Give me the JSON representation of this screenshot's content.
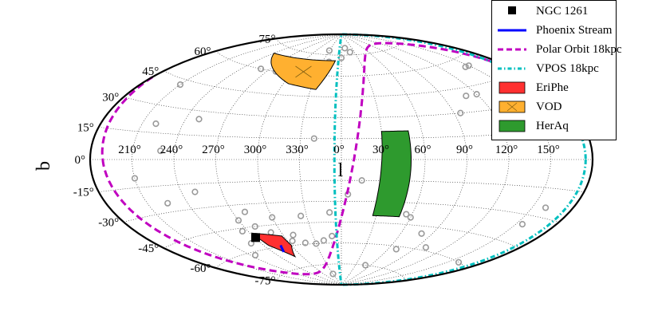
{
  "chart_data": {
    "type": "scatter",
    "projection": "aitoff",
    "xlabel": "l",
    "ylabel": "b",
    "x_ticks": [
      "150°",
      "120°",
      "90°",
      "60°",
      "30°",
      "0°",
      "330°",
      "300°",
      "270°",
      "240°",
      "210°"
    ],
    "x_tick_values": [
      150,
      120,
      90,
      60,
      30,
      0,
      -30,
      -60,
      -90,
      -120,
      -150
    ],
    "y_ticks": [
      "75°",
      "60°",
      "45°",
      "30°",
      "15°",
      "0°",
      "-15°",
      "-30°",
      "-45°",
      "-60°",
      "-75°"
    ],
    "y_tick_values": [
      75,
      60,
      45,
      30,
      15,
      0,
      -15,
      -30,
      -45,
      -60,
      -75
    ],
    "grid": true,
    "legend_position": "top-right",
    "colors": {
      "ngc1261": "#000000",
      "phoenix_stream": "#0000ff",
      "polar_orbit": "#c000c0",
      "vpos": "#00bfbf",
      "eriphe": "#ff3030",
      "vod": "#ffb030",
      "heraq": "#2e9a2e",
      "background_points": "#9a9a9a"
    },
    "series": [
      {
        "name": "NGC 1261",
        "marker": "square",
        "points": [
          [
            -89.0,
            -52.0
          ]
        ]
      },
      {
        "name": "Phoenix Stream",
        "line": "solid",
        "points": [
          [
            -72.0,
            -59.0
          ],
          [
            -74.0,
            -61.0
          ],
          [
            -77.0,
            -63.5
          ]
        ]
      },
      {
        "name": "Polar Orbit 18kpc",
        "line": "dashed",
        "pole": [
          -81.0,
          10.0
        ]
      },
      {
        "name": "VPOS 18kpc",
        "line": "dashdot",
        "pole": [
          -95.0,
          0.0
        ]
      },
      {
        "name": "EriPhe",
        "fill": "polygon",
        "vertices": [
          [
            -62.0,
            -53.0
          ],
          [
            -88.0,
            -49.0
          ],
          [
            -85.0,
            -58.0
          ],
          [
            -70.0,
            -67.5
          ],
          [
            -60.0,
            -60.0
          ]
        ]
      },
      {
        "name": "VOD",
        "fill": "polygon",
        "hatch": true,
        "vertices": [
          [
            -10.0,
            71.0
          ],
          [
            -120.0,
            70.0
          ],
          [
            -55.0,
            53.0
          ],
          [
            -25.0,
            50.0
          ]
        ]
      },
      {
        "name": "HerAq",
        "fill": "polygon",
        "vertices": [
          [
            50.0,
            20.0
          ],
          [
            30.0,
            20.0
          ],
          [
            27.0,
            -40.0
          ],
          [
            50.0,
            -40.0
          ]
        ]
      },
      {
        "name": "",
        "marker": "open-circle",
        "points": [
          [
            10.0,
            80.0
          ],
          [
            20.0,
            77.0
          ],
          [
            -30.0,
            78.0
          ],
          [
            -20.0,
            70.0
          ],
          [
            0.0,
            73.0
          ],
          [
            -80.0,
            63.0
          ],
          [
            -80.0,
            60.0
          ],
          [
            -100.0,
            60.0
          ],
          [
            -150.0,
            42.0
          ],
          [
            -140.0,
            20.0
          ],
          [
            145.0,
            55.0
          ],
          [
            150.0,
            55.0
          ],
          [
            160.0,
            35.0
          ],
          [
            120.0,
            40.0
          ],
          [
            110.0,
            40.0
          ],
          [
            95.0,
            30.0
          ],
          [
            -20.0,
            15.0
          ],
          [
            -110.0,
            25.0
          ],
          [
            -130.0,
            5.0
          ],
          [
            -150.0,
            -10.0
          ],
          [
            -110.0,
            -20.0
          ],
          [
            -135.0,
            -25.0
          ],
          [
            15.0,
            -15.0
          ],
          [
            5.0,
            -25.0
          ],
          [
            -10.0,
            -38.0
          ],
          [
            -35.0,
            -40.0
          ],
          [
            -60.0,
            -40.0
          ],
          [
            -80.0,
            -35.0
          ],
          [
            -90.0,
            -40.0
          ],
          [
            -95.0,
            -47.0
          ],
          [
            -100.0,
            -55.0
          ],
          [
            -115.0,
            -62.0
          ],
          [
            -10.0,
            -55.0
          ],
          [
            -20.0,
            -58.0
          ],
          [
            -30.0,
            -60.0
          ],
          [
            -42.0,
            -59.0
          ],
          [
            -50.0,
            -53.0
          ],
          [
            -55.0,
            -57.0
          ],
          [
            -70.0,
            -50.0
          ],
          [
            -80.0,
            -45.0
          ],
          [
            -30.0,
            -82.0
          ],
          [
            60.0,
            -40.0
          ],
          [
            55.0,
            -38.0
          ],
          [
            80.0,
            -50.0
          ],
          [
            100.0,
            -58.0
          ],
          [
            70.0,
            -62.0
          ],
          [
            50.0,
            -75.0
          ],
          [
            155.0,
            -35.0
          ],
          [
            160.0,
            -25.0
          ],
          [
            160.0,
            -60.0
          ]
        ]
      }
    ]
  },
  "legend": {
    "items": [
      {
        "label": "NGC 1261",
        "symbol": "square"
      },
      {
        "label": "Phoenix Stream",
        "symbol": "solid-line"
      },
      {
        "label": "Polar Orbit 18kpc",
        "symbol": "dashed-line"
      },
      {
        "label": "VPOS 18kpc",
        "symbol": "dashdot-line"
      },
      {
        "label": "EriPhe",
        "symbol": "patch"
      },
      {
        "label": "VOD",
        "symbol": "hatched-patch"
      },
      {
        "label": "HerAq",
        "symbol": "patch"
      }
    ]
  }
}
